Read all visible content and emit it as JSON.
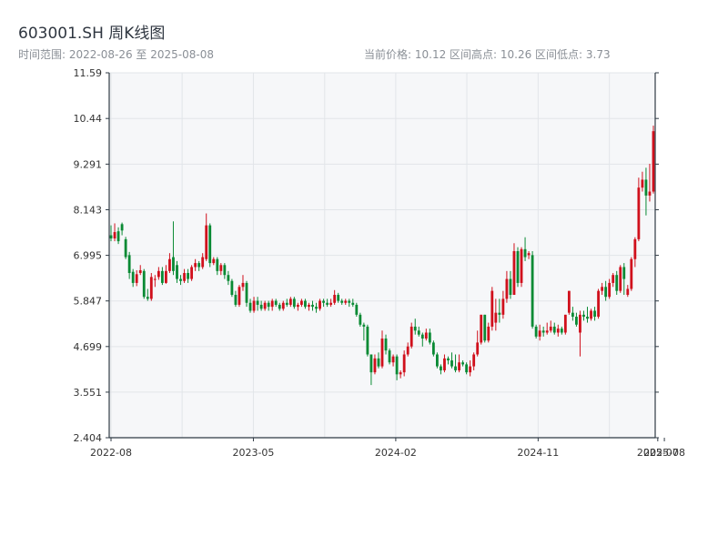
{
  "header": {
    "title": "603001.SH 周K线图",
    "range_text": "时间范围: 2022-08-26 至 2025-08-08",
    "stats_text": "当前价格: 10.12  区间高点: 10.26  区间低点: 3.73"
  },
  "colors": {
    "up": "#d0101c",
    "down": "#0a8a34",
    "plot_bg": "#f6f7f9",
    "grid": "#e2e5e9",
    "axis": "#2f3a44",
    "text": "#333333"
  },
  "chart_data": {
    "type": "candlestick",
    "title": "603001.SH 周K线图",
    "ylim": [
      2.404,
      11.59
    ],
    "y_ticks": [
      2.404,
      3.551,
      4.699,
      5.847,
      6.995,
      8.143,
      9.291,
      10.44,
      11.59
    ],
    "x_ticks": [
      "2022-08",
      "2023-05",
      "2024-02",
      "2024-11",
      "2025-07",
      "2025-08"
    ],
    "x_tick_positions": [
      0,
      38.85,
      77.7,
      116.55,
      149.2,
      151.0
    ],
    "grid": true,
    "candles": [
      [
        7.5,
        7.42,
        7.75,
        7.35
      ],
      [
        7.42,
        7.58,
        7.8,
        7.35
      ],
      [
        7.6,
        7.35,
        7.7,
        7.28
      ],
      [
        7.78,
        7.62,
        7.82,
        7.5
      ],
      [
        7.4,
        6.95,
        7.46,
        6.9
      ],
      [
        7.0,
        6.55,
        7.08,
        6.4
      ],
      [
        6.58,
        6.3,
        6.65,
        6.2
      ],
      [
        6.3,
        6.52,
        6.62,
        6.22
      ],
      [
        6.55,
        6.62,
        6.75,
        6.5
      ],
      [
        6.6,
        5.95,
        6.65,
        5.9
      ],
      [
        5.95,
        5.9,
        6.15,
        5.85
      ],
      [
        5.9,
        6.45,
        6.55,
        5.85
      ],
      [
        6.4,
        6.4,
        6.5,
        6.2
      ],
      [
        6.45,
        6.6,
        6.7,
        6.38
      ],
      [
        6.6,
        6.3,
        6.7,
        6.25
      ],
      [
        6.3,
        6.6,
        6.75,
        6.28
      ],
      [
        6.6,
        6.9,
        7.05,
        6.55
      ],
      [
        6.95,
        6.6,
        7.85,
        6.5
      ],
      [
        6.75,
        6.4,
        6.85,
        6.3
      ],
      [
        6.4,
        6.35,
        6.5,
        6.25
      ],
      [
        6.35,
        6.55,
        6.65,
        6.3
      ],
      [
        6.55,
        6.4,
        6.65,
        6.3
      ],
      [
        6.4,
        6.7,
        6.75,
        6.35
      ],
      [
        6.7,
        6.8,
        6.9,
        6.6
      ],
      [
        6.8,
        6.7,
        6.85,
        6.6
      ],
      [
        6.7,
        6.95,
        7.05,
        6.65
      ],
      [
        6.9,
        7.75,
        8.05,
        6.85
      ],
      [
        7.75,
        6.8,
        7.8,
        6.7
      ],
      [
        6.8,
        6.9,
        6.95,
        6.75
      ],
      [
        6.9,
        6.6,
        6.95,
        6.5
      ],
      [
        6.6,
        6.75,
        6.8,
        6.5
      ],
      [
        6.75,
        6.5,
        6.8,
        6.4
      ],
      [
        6.5,
        6.35,
        6.6,
        6.25
      ],
      [
        6.35,
        6.0,
        6.4,
        5.95
      ],
      [
        6.0,
        5.75,
        6.1,
        5.7
      ],
      [
        5.75,
        6.2,
        6.25,
        5.7
      ],
      [
        6.2,
        6.3,
        6.5,
        6.1
      ],
      [
        6.3,
        5.8,
        6.35,
        5.7
      ],
      [
        5.8,
        5.6,
        5.9,
        5.55
      ],
      [
        5.6,
        5.85,
        5.95,
        5.55
      ],
      [
        5.85,
        5.75,
        5.95,
        5.6
      ],
      [
        5.75,
        5.65,
        5.85,
        5.6
      ],
      [
        5.65,
        5.8,
        5.85,
        5.6
      ],
      [
        5.8,
        5.7,
        5.85,
        5.6
      ],
      [
        5.7,
        5.85,
        5.9,
        5.6
      ],
      [
        5.85,
        5.75,
        5.9,
        5.7
      ],
      [
        5.75,
        5.65,
        5.8,
        5.6
      ],
      [
        5.65,
        5.8,
        5.85,
        5.6
      ],
      [
        5.8,
        5.75,
        5.9,
        5.7
      ],
      [
        5.75,
        5.9,
        5.95,
        5.7
      ],
      [
        5.9,
        5.7,
        5.95,
        5.65
      ],
      [
        5.7,
        5.75,
        5.8,
        5.6
      ],
      [
        5.75,
        5.85,
        5.9,
        5.7
      ],
      [
        5.85,
        5.7,
        5.9,
        5.65
      ],
      [
        5.7,
        5.75,
        5.8,
        5.6
      ],
      [
        5.75,
        5.7,
        5.85,
        5.6
      ],
      [
        5.7,
        5.65,
        5.8,
        5.55
      ],
      [
        5.65,
        5.85,
        5.9,
        5.6
      ],
      [
        5.85,
        5.8,
        5.9,
        5.7
      ],
      [
        5.8,
        5.75,
        5.9,
        5.7
      ],
      [
        5.75,
        5.8,
        5.9,
        5.7
      ],
      [
        5.8,
        6.0,
        6.12,
        5.75
      ],
      [
        6.0,
        5.85,
        6.05,
        5.8
      ],
      [
        5.85,
        5.8,
        5.9,
        5.75
      ],
      [
        5.8,
        5.85,
        5.9,
        5.75
      ],
      [
        5.85,
        5.8,
        5.9,
        5.7
      ],
      [
        5.8,
        5.75,
        5.9,
        5.7
      ],
      [
        5.75,
        5.5,
        5.8,
        5.45
      ],
      [
        5.5,
        5.25,
        5.55,
        5.2
      ],
      [
        5.25,
        5.2,
        5.3,
        4.85
      ],
      [
        5.2,
        4.5,
        5.25,
        4.45
      ],
      [
        4.5,
        4.05,
        4.5,
        3.73
      ],
      [
        4.05,
        4.4,
        4.5,
        4.0
      ],
      [
        4.4,
        4.2,
        4.55,
        4.15
      ],
      [
        4.2,
        4.9,
        5.1,
        4.15
      ],
      [
        4.9,
        4.6,
        5.0,
        4.5
      ],
      [
        4.6,
        4.3,
        4.65,
        4.25
      ],
      [
        4.3,
        4.45,
        4.5,
        4.2
      ],
      [
        4.45,
        4.0,
        4.5,
        3.85
      ],
      [
        4.0,
        4.05,
        4.1,
        3.9
      ],
      [
        4.05,
        4.5,
        4.6,
        3.95
      ],
      [
        4.5,
        4.7,
        4.8,
        4.45
      ],
      [
        4.7,
        5.2,
        5.3,
        4.65
      ],
      [
        5.2,
        5.1,
        5.4,
        5.0
      ],
      [
        5.1,
        5.0,
        5.2,
        4.95
      ],
      [
        5.0,
        4.9,
        5.05,
        4.7
      ],
      [
        4.9,
        5.05,
        5.15,
        4.85
      ],
      [
        5.05,
        4.8,
        5.15,
        4.75
      ],
      [
        4.8,
        4.5,
        4.85,
        4.45
      ],
      [
        4.5,
        4.2,
        4.55,
        4.15
      ],
      [
        4.2,
        4.1,
        4.25,
        4.0
      ],
      [
        4.1,
        4.4,
        4.5,
        4.05
      ],
      [
        4.4,
        4.35,
        4.45,
        4.25
      ],
      [
        4.35,
        4.2,
        4.55,
        4.15
      ],
      [
        4.2,
        4.1,
        4.5,
        4.05
      ],
      [
        4.1,
        4.3,
        4.5,
        4.05
      ],
      [
        4.3,
        4.25,
        4.35,
        4.2
      ],
      [
        4.25,
        4.05,
        4.3,
        4.0
      ],
      [
        4.05,
        4.2,
        4.35,
        3.95
      ],
      [
        4.2,
        4.5,
        4.55,
        4.1
      ],
      [
        4.5,
        4.8,
        5.1,
        4.45
      ],
      [
        4.8,
        5.5,
        5.5,
        4.75
      ],
      [
        5.5,
        4.85,
        5.5,
        4.8
      ],
      [
        4.85,
        5.2,
        5.3,
        4.8
      ],
      [
        5.2,
        6.1,
        6.2,
        5.1
      ],
      [
        5.3,
        5.55,
        5.9,
        5.1
      ],
      [
        5.55,
        5.5,
        5.9,
        5.3
      ],
      [
        5.5,
        5.9,
        6.1,
        5.4
      ],
      [
        5.9,
        6.4,
        6.6,
        5.8
      ],
      [
        6.4,
        6.0,
        6.6,
        5.9
      ],
      [
        6.0,
        7.1,
        7.3,
        6.0
      ],
      [
        7.1,
        6.3,
        7.2,
        6.2
      ],
      [
        6.3,
        7.15,
        7.2,
        6.2
      ],
      [
        7.15,
        6.95,
        7.45,
        6.85
      ],
      [
        7.0,
        7.05,
        7.1,
        6.9
      ],
      [
        7.0,
        5.2,
        7.1,
        5.15
      ],
      [
        5.2,
        4.95,
        5.25,
        4.9
      ],
      [
        4.95,
        5.1,
        5.25,
        4.85
      ],
      [
        5.1,
        5.05,
        5.2,
        4.95
      ],
      [
        5.05,
        5.1,
        5.3,
        5.0
      ],
      [
        5.1,
        5.2,
        5.35,
        5.05
      ],
      [
        5.2,
        5.05,
        5.3,
        5.0
      ],
      [
        5.05,
        5.15,
        5.25,
        4.95
      ],
      [
        5.15,
        5.05,
        5.2,
        5.0
      ],
      [
        5.05,
        5.5,
        5.5,
        5.0
      ],
      [
        5.55,
        6.1,
        6.1,
        5.5
      ],
      [
        5.55,
        5.45,
        5.7,
        5.35
      ],
      [
        5.45,
        5.25,
        5.55,
        5.2
      ],
      [
        5.05,
        5.5,
        5.6,
        4.45
      ],
      [
        5.5,
        5.45,
        5.6,
        5.35
      ],
      [
        5.45,
        5.4,
        5.7,
        5.3
      ],
      [
        5.4,
        5.6,
        5.65,
        5.35
      ],
      [
        5.6,
        5.45,
        5.7,
        5.35
      ],
      [
        5.45,
        6.1,
        6.15,
        5.4
      ],
      [
        6.1,
        6.2,
        6.3,
        6.0
      ],
      [
        6.2,
        5.95,
        6.35,
        5.85
      ],
      [
        5.95,
        6.3,
        6.4,
        5.9
      ],
      [
        6.3,
        6.5,
        6.55,
        6.2
      ],
      [
        6.5,
        6.1,
        6.6,
        6.0
      ],
      [
        6.1,
        6.7,
        6.75,
        6.05
      ],
      [
        6.7,
        6.4,
        6.8,
        6.0
      ],
      [
        6.0,
        6.15,
        6.25,
        5.95
      ],
      [
        6.15,
        6.9,
        6.95,
        6.1
      ],
      [
        6.9,
        7.4,
        7.45,
        6.7
      ],
      [
        7.4,
        8.7,
        8.95,
        7.35
      ],
      [
        8.7,
        8.9,
        9.1,
        8.6
      ],
      [
        8.9,
        8.5,
        9.2,
        8.0
      ],
      [
        8.5,
        8.6,
        9.3,
        8.35
      ],
      [
        8.6,
        10.12,
        10.26,
        8.55
      ]
    ]
  }
}
